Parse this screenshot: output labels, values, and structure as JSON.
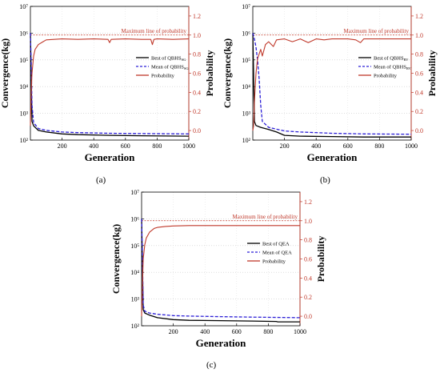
{
  "captions": [
    "(a)",
    "(b)",
    "(c)"
  ],
  "chart_data": [
    {
      "type": "line",
      "panel_label": "(a)",
      "xlabel": "Generation",
      "ylabel_left": "Convergence(kg)",
      "ylabel_right": "Probability",
      "xlim": [
        0,
        1000
      ],
      "x_ticks": [
        200,
        400,
        600,
        800,
        1000
      ],
      "ylim_left": [
        100,
        10000000
      ],
      "y_scale_left": "log",
      "y_ticks_left": [
        100,
        1000,
        10000,
        100000,
        1000000,
        10000000
      ],
      "y_tick_labels_left": [
        "10²",
        "10³",
        "10⁴",
        "10⁵",
        "10⁶",
        "10⁷"
      ],
      "ylim_right": [
        -0.1,
        1.3
      ],
      "y_ticks_right": [
        0.0,
        0.2,
        0.4,
        0.6,
        0.8,
        1.0,
        1.2
      ],
      "y_tick_labels_right": [
        "0.0",
        "0.2",
        "0.4",
        "0.6",
        "0.8",
        "1.0",
        "1.2"
      ],
      "grid": true,
      "legend_position": "right",
      "annotation": {
        "text": "Maximum line of probability",
        "y_right": 1.0
      },
      "series": [
        {
          "name": "Best of QBHS",
          "name_sub": "SG",
          "axis": "left",
          "color": "#000000",
          "dash": "solid",
          "x": [
            0,
            5,
            10,
            20,
            50,
            100,
            200,
            300,
            500,
            700,
            1000
          ],
          "y": [
            1000000,
            20000,
            500,
            340,
            230,
            200,
            170,
            160,
            150,
            145,
            140
          ]
        },
        {
          "name": "Mean of QBHS",
          "name_sub": "SG",
          "axis": "left",
          "color": "#2b1ed6",
          "dash": "dashed",
          "x": [
            0,
            5,
            10,
            20,
            50,
            100,
            200,
            300,
            500,
            700,
            1000
          ],
          "y": [
            1000000,
            80000,
            2000,
            450,
            270,
            230,
            200,
            190,
            180,
            175,
            170
          ]
        },
        {
          "name": "Probability",
          "axis": "right",
          "color": "#c0392b",
          "dash": "solid",
          "x": [
            0,
            5,
            10,
            20,
            30,
            50,
            80,
            100,
            150,
            200,
            300,
            400,
            490,
            500,
            510,
            600,
            700,
            760,
            770,
            780,
            800,
            900,
            1000
          ],
          "y": [
            0.05,
            0.4,
            0.6,
            0.78,
            0.85,
            0.9,
            0.93,
            0.95,
            0.955,
            0.96,
            0.955,
            0.96,
            0.955,
            0.92,
            0.955,
            0.96,
            0.955,
            0.955,
            0.9,
            0.955,
            0.96,
            0.955,
            0.96
          ]
        }
      ]
    },
    {
      "type": "line",
      "panel_label": "(b)",
      "xlabel": "Generation",
      "ylabel_left": "Convergence(kg)",
      "ylabel_right": "Probability",
      "xlim": [
        0,
        1000
      ],
      "x_ticks": [
        200,
        400,
        600,
        800,
        1000
      ],
      "ylim_left": [
        100,
        10000000
      ],
      "y_scale_left": "log",
      "y_ticks_left": [
        100,
        1000,
        10000,
        100000,
        1000000,
        10000000
      ],
      "y_tick_labels_left": [
        "10²",
        "10³",
        "10⁴",
        "10⁵",
        "10⁶",
        "10⁷"
      ],
      "ylim_right": [
        -0.1,
        1.3
      ],
      "y_ticks_right": [
        0.0,
        0.2,
        0.4,
        0.6,
        0.8,
        1.0,
        1.2
      ],
      "y_tick_labels_right": [
        "0.0",
        "0.2",
        "0.4",
        "0.6",
        "0.8",
        "1.0",
        "1.2"
      ],
      "grid": true,
      "legend_position": "right",
      "annotation": {
        "text": "Maximum line of probability",
        "y_right": 1.0
      },
      "series": [
        {
          "name": "Best of QBHS",
          "name_sub": "RV",
          "axis": "left",
          "color": "#000000",
          "dash": "solid",
          "x": [
            0,
            5,
            10,
            20,
            50,
            100,
            150,
            200,
            300,
            500,
            700,
            1000
          ],
          "y": [
            1000000,
            30000,
            500,
            350,
            300,
            250,
            200,
            150,
            140,
            135,
            130,
            130
          ]
        },
        {
          "name": "Mean of QBHS",
          "name_sub": "RV",
          "axis": "left",
          "color": "#2b1ed6",
          "dash": "dashed",
          "x": [
            0,
            5,
            10,
            20,
            30,
            40,
            50,
            60,
            100,
            200,
            300,
            500,
            700,
            1000
          ],
          "y": [
            1000000,
            800000,
            600000,
            300000,
            100000,
            20000,
            2000,
            500,
            300,
            220,
            200,
            180,
            170,
            165
          ]
        },
        {
          "name": "Probability",
          "axis": "right",
          "color": "#c0392b",
          "dash": "solid",
          "x": [
            0,
            5,
            10,
            20,
            30,
            40,
            50,
            60,
            80,
            100,
            130,
            150,
            200,
            250,
            300,
            350,
            400,
            450,
            500,
            600,
            650,
            680,
            700,
            800,
            900,
            1000
          ],
          "y": [
            0.0,
            0.05,
            0.3,
            0.6,
            0.75,
            0.8,
            0.85,
            0.78,
            0.9,
            0.93,
            0.88,
            0.95,
            0.96,
            0.93,
            0.96,
            0.92,
            0.96,
            0.95,
            0.96,
            0.96,
            0.95,
            0.92,
            0.96,
            0.96,
            0.96,
            0.96
          ]
        }
      ]
    },
    {
      "type": "line",
      "panel_label": "(c)",
      "xlabel": "Generation",
      "ylabel_left": "Convergence(kg)",
      "ylabel_right": "Probability",
      "xlim": [
        0,
        1000
      ],
      "x_ticks": [
        200,
        400,
        600,
        800,
        1000
      ],
      "ylim_left": [
        100,
        10000000
      ],
      "y_scale_left": "log",
      "y_ticks_left": [
        100,
        1000,
        10000,
        100000,
        1000000,
        10000000
      ],
      "y_tick_labels_left": [
        "10²",
        "10³",
        "10⁴",
        "10⁵",
        "10⁶",
        "10⁷"
      ],
      "ylim_right": [
        -0.1,
        1.3
      ],
      "y_ticks_right": [
        0.0,
        0.2,
        0.4,
        0.6,
        0.8,
        1.0,
        1.2
      ],
      "y_tick_labels_right": [
        "0.0",
        "0.2",
        "0.4",
        "0.6",
        "0.8",
        "1.0",
        "1.2"
      ],
      "grid": true,
      "legend_position": "right",
      "annotation": {
        "text": "Maximum line of probability",
        "y_right": 1.0
      },
      "series": [
        {
          "name": "Best of QEA",
          "axis": "left",
          "color": "#000000",
          "dash": "solid",
          "x": [
            0,
            5,
            10,
            20,
            50,
            100,
            200,
            300,
            500,
            700,
            850,
            860,
            1000
          ],
          "y": [
            1000000,
            20000,
            400,
            300,
            250,
            200,
            170,
            160,
            155,
            150,
            145,
            140,
            140
          ]
        },
        {
          "name": "Mean of QEA",
          "axis": "left",
          "color": "#2b1ed6",
          "dash": "dashed",
          "x": [
            0,
            5,
            10,
            20,
            50,
            100,
            200,
            300,
            500,
            700,
            1000
          ],
          "y": [
            1000000,
            50000,
            600,
            350,
            300,
            270,
            240,
            230,
            220,
            210,
            200
          ]
        },
        {
          "name": "Probability",
          "axis": "right",
          "color": "#c0392b",
          "dash": "solid",
          "x": [
            0,
            5,
            10,
            20,
            30,
            50,
            80,
            100,
            150,
            200,
            300,
            400,
            500,
            600,
            700,
            800,
            900,
            1000
          ],
          "y": [
            0.0,
            0.3,
            0.6,
            0.75,
            0.82,
            0.88,
            0.92,
            0.93,
            0.94,
            0.945,
            0.95,
            0.95,
            0.95,
            0.95,
            0.95,
            0.95,
            0.95,
            0.95
          ]
        }
      ]
    }
  ]
}
